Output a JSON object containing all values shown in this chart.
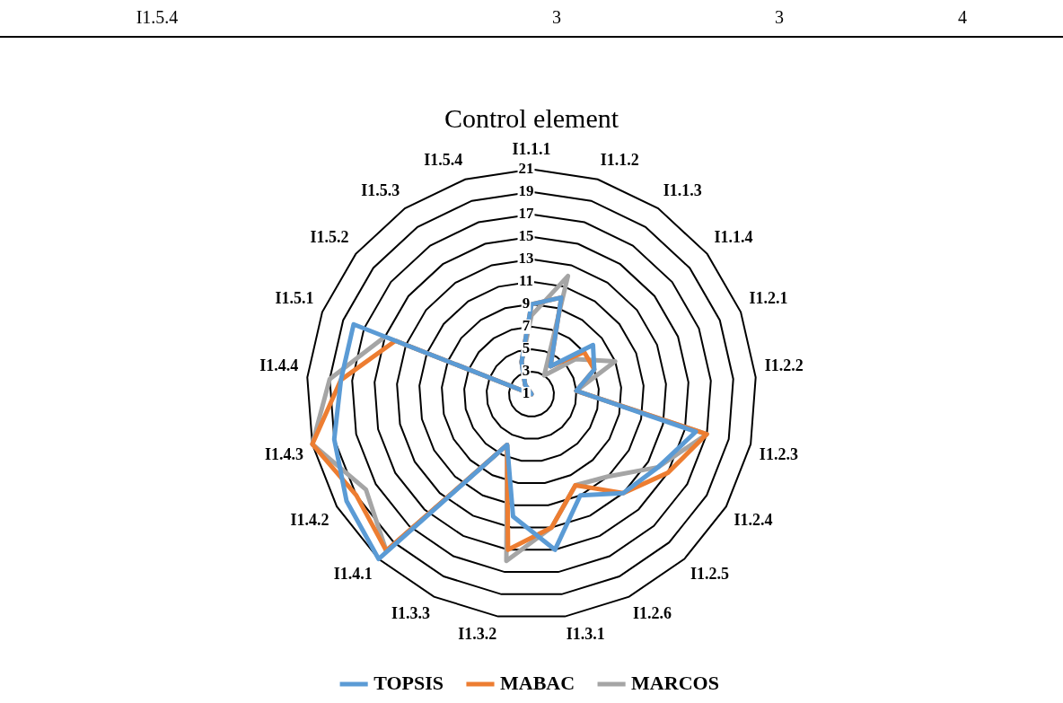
{
  "chart_data": {
    "type": "radar",
    "title": "Control element",
    "categories": [
      "I1.1.1",
      "I1.1.2",
      "I1.1.3",
      "I1.1.4",
      "I1.2.1",
      "I1.2.2",
      "I1.2.3",
      "I1.2.4",
      "I1.2.5",
      "I1.2.6",
      "I1.3.1",
      "I1.3.2",
      "I1.3.3",
      "I1.4.1",
      "I1.4.2",
      "I1.4.3",
      "I1.4.4",
      "I1.5.1",
      "I1.5.2",
      "I1.5.3",
      "I1.5.4"
    ],
    "series": [
      {
        "name": "TOPSIS",
        "color": "#5b9bd5",
        "values": [
          9,
          10,
          4,
          8,
          7,
          5,
          16,
          14,
          13,
          11,
          15,
          12,
          6,
          21,
          20,
          19,
          18,
          18,
          1,
          2,
          4
        ]
      },
      {
        "name": "MABAC",
        "color": "#ed7d31",
        "values": [
          9,
          10,
          4,
          7,
          7,
          5,
          17,
          15,
          13,
          10,
          13,
          15,
          6,
          20,
          19,
          21,
          18,
          14,
          1,
          2,
          4
        ]
      },
      {
        "name": "MARCOS",
        "color": "#a5a5a5",
        "values": [
          8,
          12,
          3,
          6,
          9,
          5,
          17,
          14,
          11,
          10,
          13,
          16,
          6,
          20,
          18,
          21,
          19,
          15,
          1,
          2,
          4
        ]
      }
    ],
    "ylim": [
      1,
      21
    ],
    "yticks": [
      1,
      3,
      5,
      7,
      9,
      11,
      13,
      15,
      17,
      19,
      21
    ],
    "grid": true,
    "legend": "bottom",
    "annotations": [
      "I1.5.4",
      "3",
      "3",
      "4"
    ]
  }
}
